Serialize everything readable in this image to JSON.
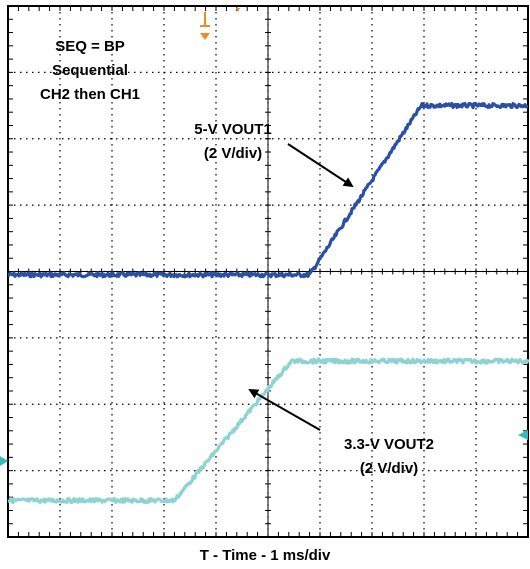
{
  "chart_data": {
    "type": "line",
    "title": "",
    "xlabel": "T - Time - 1 ms/div",
    "ylabel": "",
    "grid": true,
    "divisions": {
      "x": 10,
      "y": 8
    },
    "xlim": [
      0,
      10
    ],
    "ylim": [
      0,
      8
    ],
    "series": [
      {
        "name": "5-V VOUT1",
        "label": "5-V VOUT1",
        "scale": "(2 V/div)",
        "color": "#2a4fa3",
        "x": [
          0,
          5.8,
          7.95,
          10
        ],
        "y": [
          3.95,
          3.95,
          6.5,
          6.5
        ]
      },
      {
        "name": "3.3-V VOUT2",
        "label": "3.3-V VOUT2",
        "scale": "(2 V/div)",
        "color": "#8ed3d3",
        "x": [
          0,
          3.2,
          5.45,
          10
        ],
        "y": [
          0.55,
          0.55,
          2.65,
          2.65
        ]
      }
    ],
    "annotations": [
      {
        "lines": [
          "SEQ = BP",
          "Sequential",
          "CH2 then CH1"
        ]
      }
    ],
    "markers": {
      "trigger_color": "#f08a24",
      "ref_color": "#3bb8b8"
    }
  }
}
